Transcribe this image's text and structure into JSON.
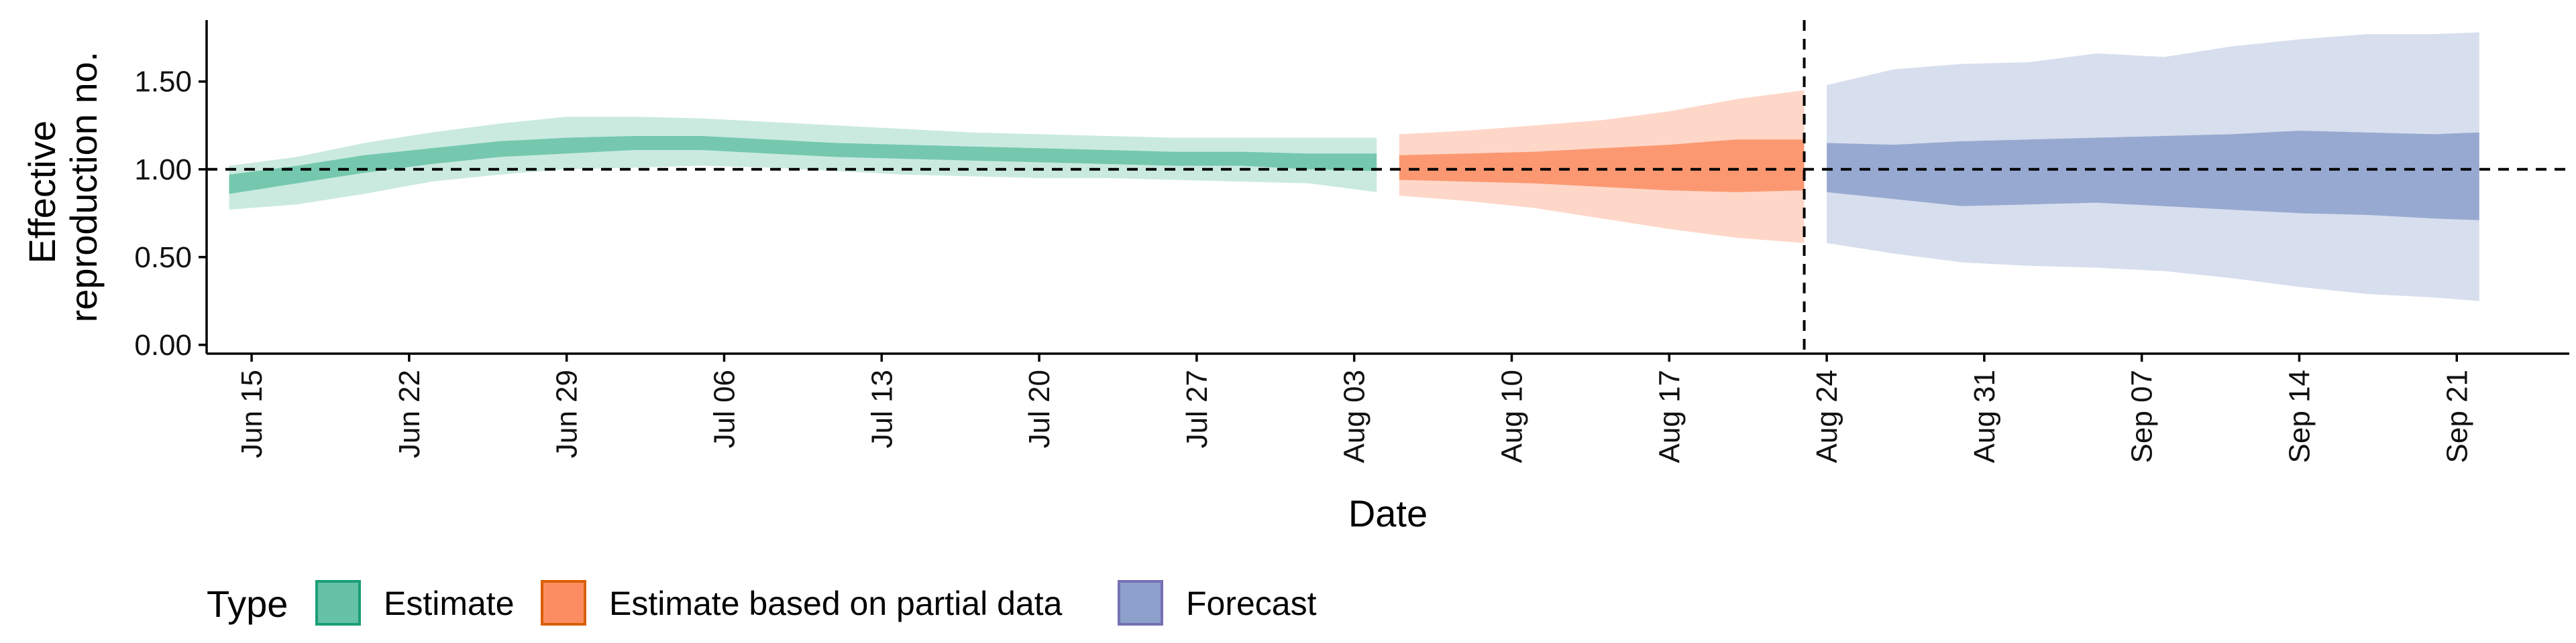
{
  "chart_data": {
    "type": "area",
    "title": "",
    "xlabel": "Date",
    "ylabel": "Effective reproduction no.",
    "ylabel_lines": [
      "Effective",
      "reproduction no."
    ],
    "x_start": "2020-06-13",
    "x_end": "2020-09-26",
    "ylim": [
      -0.05,
      1.85
    ],
    "y_ticks": [
      0.0,
      0.5,
      1.0,
      1.5
    ],
    "y_tick_labels": [
      "0.00",
      "0.50",
      "1.00",
      "1.50"
    ],
    "x_ticks": [
      "2020-06-15",
      "2020-06-22",
      "2020-06-29",
      "2020-07-06",
      "2020-07-13",
      "2020-07-20",
      "2020-07-27",
      "2020-08-03",
      "2020-08-10",
      "2020-08-17",
      "2020-08-24",
      "2020-08-31",
      "2020-09-07",
      "2020-09-14",
      "2020-09-21"
    ],
    "x_tick_labels": [
      "Jun 15",
      "Jun 22",
      "Jun 29",
      "Jul 06",
      "Jul 13",
      "Jul 20",
      "Jul 27",
      "Aug 03",
      "Aug 10",
      "Aug 17",
      "Aug 24",
      "Aug 31",
      "Sep 07",
      "Sep 14",
      "Sep 21"
    ],
    "hline": 1.0,
    "vline": "2020-08-23",
    "grid": false,
    "legend_placement": "bottom",
    "legend_title": "Type",
    "series": [
      {
        "name": "Estimate",
        "color": "#66c2a5",
        "dates": [
          "2020-06-14",
          "2020-06-17",
          "2020-06-20",
          "2020-06-23",
          "2020-06-26",
          "2020-06-29",
          "2020-07-02",
          "2020-07-05",
          "2020-07-08",
          "2020-07-11",
          "2020-07-14",
          "2020-07-17",
          "2020-07-20",
          "2020-07-23",
          "2020-07-26",
          "2020-07-29",
          "2020-08-01",
          "2020-08-04"
        ],
        "median": [
          0.91,
          0.97,
          1.03,
          1.08,
          1.12,
          1.14,
          1.15,
          1.15,
          1.13,
          1.11,
          1.1,
          1.09,
          1.08,
          1.07,
          1.06,
          1.06,
          1.05,
          1.04
        ],
        "inner_lower": [
          0.86,
          0.92,
          0.98,
          1.03,
          1.07,
          1.09,
          1.11,
          1.11,
          1.09,
          1.07,
          1.06,
          1.05,
          1.04,
          1.03,
          1.02,
          1.02,
          1.0,
          0.99
        ],
        "inner_upper": [
          0.97,
          1.02,
          1.08,
          1.12,
          1.16,
          1.18,
          1.19,
          1.19,
          1.17,
          1.15,
          1.14,
          1.13,
          1.12,
          1.11,
          1.1,
          1.1,
          1.09,
          1.09
        ],
        "outer_lower": [
          0.77,
          0.8,
          0.86,
          0.93,
          0.97,
          1.0,
          1.01,
          1.02,
          1.01,
          0.99,
          0.97,
          0.96,
          0.95,
          0.95,
          0.94,
          0.93,
          0.92,
          0.87
        ],
        "outer_upper": [
          1.02,
          1.07,
          1.15,
          1.21,
          1.26,
          1.3,
          1.3,
          1.29,
          1.27,
          1.25,
          1.23,
          1.21,
          1.2,
          1.19,
          1.18,
          1.18,
          1.18,
          1.18
        ]
      },
      {
        "name": "Estimate based on partial data",
        "color": "#fc8d62",
        "dates": [
          "2020-08-05",
          "2020-08-08",
          "2020-08-11",
          "2020-08-14",
          "2020-08-17",
          "2020-08-20",
          "2020-08-23"
        ],
        "median": [
          1.0,
          1.01,
          1.01,
          1.02,
          1.03,
          1.04,
          1.05
        ],
        "inner_lower": [
          0.94,
          0.93,
          0.92,
          0.9,
          0.88,
          0.87,
          0.88
        ],
        "inner_upper": [
          1.08,
          1.09,
          1.1,
          1.12,
          1.14,
          1.17,
          1.17
        ],
        "outer_lower": [
          0.85,
          0.82,
          0.78,
          0.72,
          0.66,
          0.61,
          0.58
        ],
        "outer_upper": [
          1.2,
          1.22,
          1.25,
          1.28,
          1.33,
          1.4,
          1.45
        ]
      },
      {
        "name": "Forecast",
        "color": "#8da0cb",
        "dates": [
          "2020-08-24",
          "2020-08-27",
          "2020-08-30",
          "2020-09-02",
          "2020-09-05",
          "2020-09-08",
          "2020-09-11",
          "2020-09-14",
          "2020-09-17",
          "2020-09-20",
          "2020-09-22"
        ],
        "median": [
          1.0,
          0.99,
          0.98,
          0.99,
          0.99,
          0.98,
          0.98,
          0.97,
          0.97,
          0.96,
          0.96
        ],
        "inner_lower": [
          0.87,
          0.83,
          0.79,
          0.8,
          0.81,
          0.79,
          0.77,
          0.75,
          0.74,
          0.72,
          0.71
        ],
        "inner_upper": [
          1.15,
          1.14,
          1.16,
          1.17,
          1.18,
          1.19,
          1.2,
          1.22,
          1.21,
          1.2,
          1.21
        ],
        "outer_lower": [
          0.58,
          0.52,
          0.47,
          0.45,
          0.44,
          0.42,
          0.38,
          0.33,
          0.29,
          0.27,
          0.25
        ],
        "outer_upper": [
          1.48,
          1.57,
          1.6,
          1.61,
          1.66,
          1.64,
          1.7,
          1.74,
          1.77,
          1.77,
          1.78
        ]
      }
    ]
  }
}
